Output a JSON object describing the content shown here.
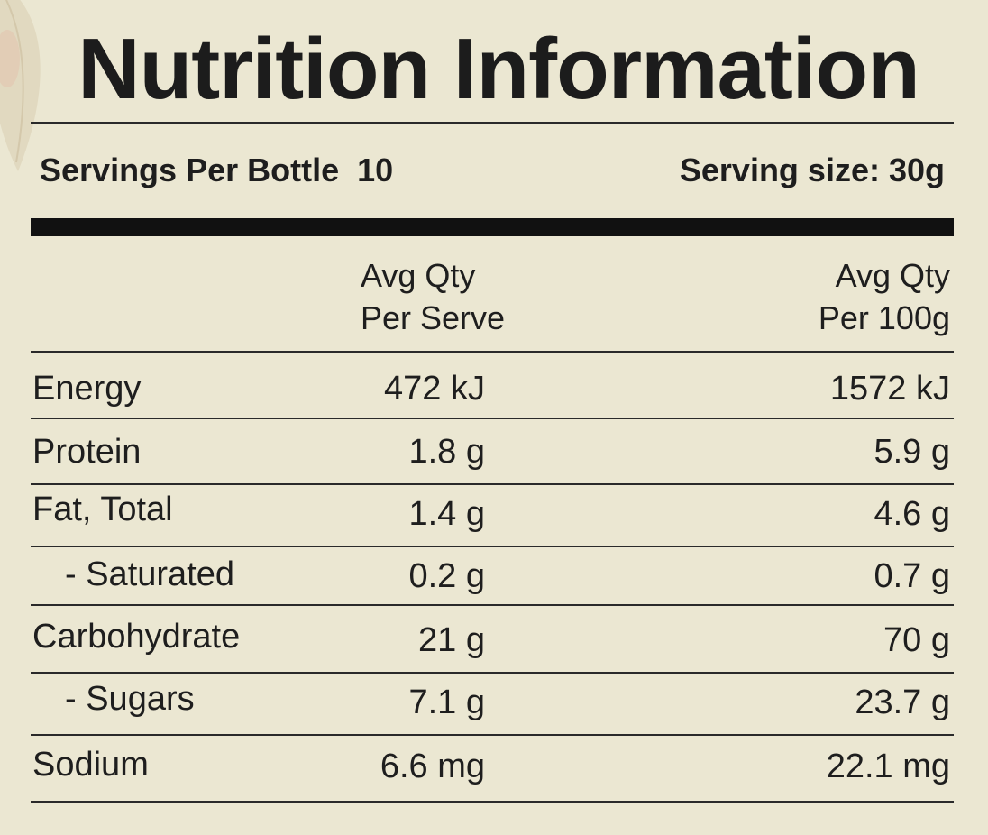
{
  "panel": {
    "title": "Nutrition Information",
    "servings_per_bottle": "Servings Per Bottle  10",
    "serving_size": "Serving size: 30g"
  },
  "columns": {
    "per_serve_line1": "Avg Qty",
    "per_serve_line2": "Per Serve",
    "per_100g_line1": "Avg Qty",
    "per_100g_line2": "Per 100g"
  },
  "rows": [
    {
      "name": "Energy",
      "per_serve": "472 kJ",
      "per_100g": "1572 kJ"
    },
    {
      "name": "Protein",
      "per_serve": "1.8 g",
      "per_100g": "5.9 g"
    },
    {
      "name": "Fat, Total",
      "per_serve": "1.4 g",
      "per_100g": "4.6 g"
    },
    {
      "name": "- Saturated",
      "per_serve": "0.2 g",
      "per_100g": "0.7 g"
    },
    {
      "name": "Carbohydrate",
      "per_serve": "21 g",
      "per_100g": "70 g"
    },
    {
      "name": "- Sugars",
      "per_serve": "7.1 g",
      "per_100g": "23.7 g"
    },
    {
      "name": "Sodium",
      "per_serve": "6.6 mg",
      "per_100g": "22.1 mg"
    }
  ],
  "colors": {
    "background": "#ebe7d2",
    "text": "#1e1e1e",
    "rule": "#111111"
  }
}
